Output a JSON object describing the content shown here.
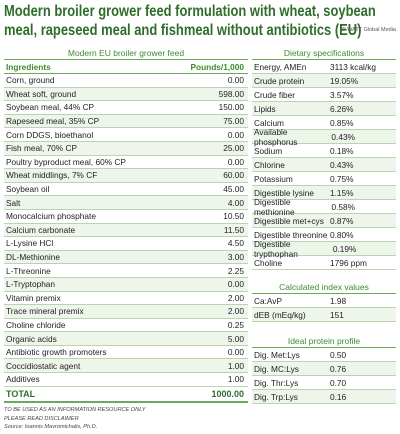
{
  "header": {
    "title": "Modern broiler grower feed formulation with wheat, soybean meal, rapeseed meal and fishmeal without antibiotics (EU)",
    "credit": "© WATT Global Media"
  },
  "feed_table": {
    "title": "Modern EU broiler grower feed",
    "columns": [
      "Ingredients",
      "Pounds/1,000"
    ],
    "rows": [
      [
        "Corn, ground",
        "0.00"
      ],
      [
        "Wheat soft, ground",
        "598.00"
      ],
      [
        "Soybean meal, 44% CP",
        "150.00"
      ],
      [
        "Rapeseed meal, 35% CP",
        "75.00"
      ],
      [
        "Corn DDGS, bioethanol",
        "0.00"
      ],
      [
        "Fish meal, 70% CP",
        "25.00"
      ],
      [
        "Poultry byproduct meal, 60% CP",
        "0.00"
      ],
      [
        "Wheat middlings, 7% CF",
        "60.00"
      ],
      [
        "Soybean oil",
        "45.00"
      ],
      [
        "Salt",
        "4.00"
      ],
      [
        "Monocalcium phosphate",
        "10.50"
      ],
      [
        "Calcium carbonate",
        "11.50"
      ],
      [
        "L-Lysine HCl",
        "4.50"
      ],
      [
        "DL-Methionine",
        "3.00"
      ],
      [
        "L-Threonine",
        "2.25"
      ],
      [
        "L-Tryptophan",
        "0.00"
      ],
      [
        "Vitamin premix",
        "2.00"
      ],
      [
        "Trace mineral premix",
        "2.00"
      ],
      [
        "Choline chloride",
        "0.25"
      ],
      [
        "Organic acids",
        "5.00"
      ],
      [
        "Antibiotic growth promoters",
        "0.00"
      ],
      [
        "Coccidiostatic agent",
        "1.00"
      ],
      [
        "Additives",
        "1.00"
      ]
    ],
    "total": [
      "TOTAL",
      "1000.00"
    ]
  },
  "dietary_specifications": {
    "title": "Dietary specifications",
    "rows": [
      [
        "Energy, AMEn",
        "3113 kcal/kg"
      ],
      [
        "Crude protein",
        "19.05%"
      ],
      [
        "Crude fiber",
        "3.57%"
      ],
      [
        "Lipids",
        "6.26%"
      ],
      [
        "Calcium",
        "0.85%"
      ],
      [
        "Available phosphorus",
        "0.43%"
      ],
      [
        "Sodium",
        "0.18%"
      ],
      [
        "Chlorine",
        "0.43%"
      ],
      [
        "Potassium",
        "0.75%"
      ],
      [
        "Digestible lysine",
        "1.15%"
      ],
      [
        "Digestible methionine",
        "0.58%"
      ],
      [
        "Digestible met+cys",
        "0.87%"
      ],
      [
        "Digestible threonine",
        "0.80%"
      ],
      [
        "Digestible trypthophan",
        "0.19%"
      ],
      [
        "Choline",
        "1796 ppm"
      ]
    ]
  },
  "calculated_index_values": {
    "title": "Calculated index values",
    "rows": [
      [
        "Ca:AvP",
        "1.98"
      ],
      [
        "dEB (mEq/kg)",
        "151"
      ]
    ]
  },
  "ideal_protein_profile": {
    "title": "Ideal protein profile",
    "rows": [
      [
        "Dig. Met:Lys",
        "0.50"
      ],
      [
        "Dig. MC:Lys",
        "0.76"
      ],
      [
        "Dig. Thr:Lys",
        "0.70"
      ],
      [
        "Dig. Trp:Lys",
        "0.16"
      ]
    ]
  },
  "notes": [
    "TO BE USED AS AN INFORMATION RESOURCE ONLY",
    "PLEASE READ DISCLAIMER",
    "Source: Ioannis Mavromichalis, Ph.D."
  ]
}
